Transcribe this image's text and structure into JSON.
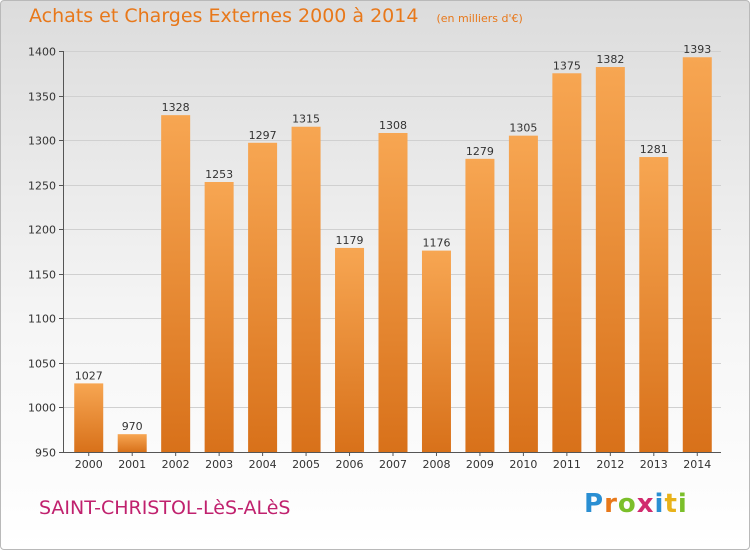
{
  "header": {
    "title": "Achats et Charges Externes 2000 à 2014",
    "unit": "(en milliers d'€)"
  },
  "footer": {
    "place": "SAINT-CHRISTOL-LèS-ALèS",
    "logo": "Proxiti"
  },
  "colors": {
    "bar_top": "#f7a652",
    "bar_bottom": "#d8711a",
    "title": "#e8781a",
    "place": "#c0216e"
  },
  "chart_data": {
    "type": "bar",
    "title": "Achats et Charges Externes 2000 à 2014",
    "subtitle": "(en milliers d'€)",
    "categories": [
      "2000",
      "2001",
      "2002",
      "2003",
      "2004",
      "2005",
      "2006",
      "2007",
      "2008",
      "2009",
      "2010",
      "2011",
      "2012",
      "2013",
      "2014"
    ],
    "values": [
      1027,
      970,
      1328,
      1253,
      1297,
      1315,
      1179,
      1308,
      1176,
      1279,
      1305,
      1375,
      1382,
      1281,
      1393
    ],
    "ylim": [
      950,
      1400
    ],
    "yticks": [
      950,
      1000,
      1050,
      1100,
      1150,
      1200,
      1250,
      1300,
      1350,
      1400
    ],
    "grid": true,
    "legend": "none"
  }
}
